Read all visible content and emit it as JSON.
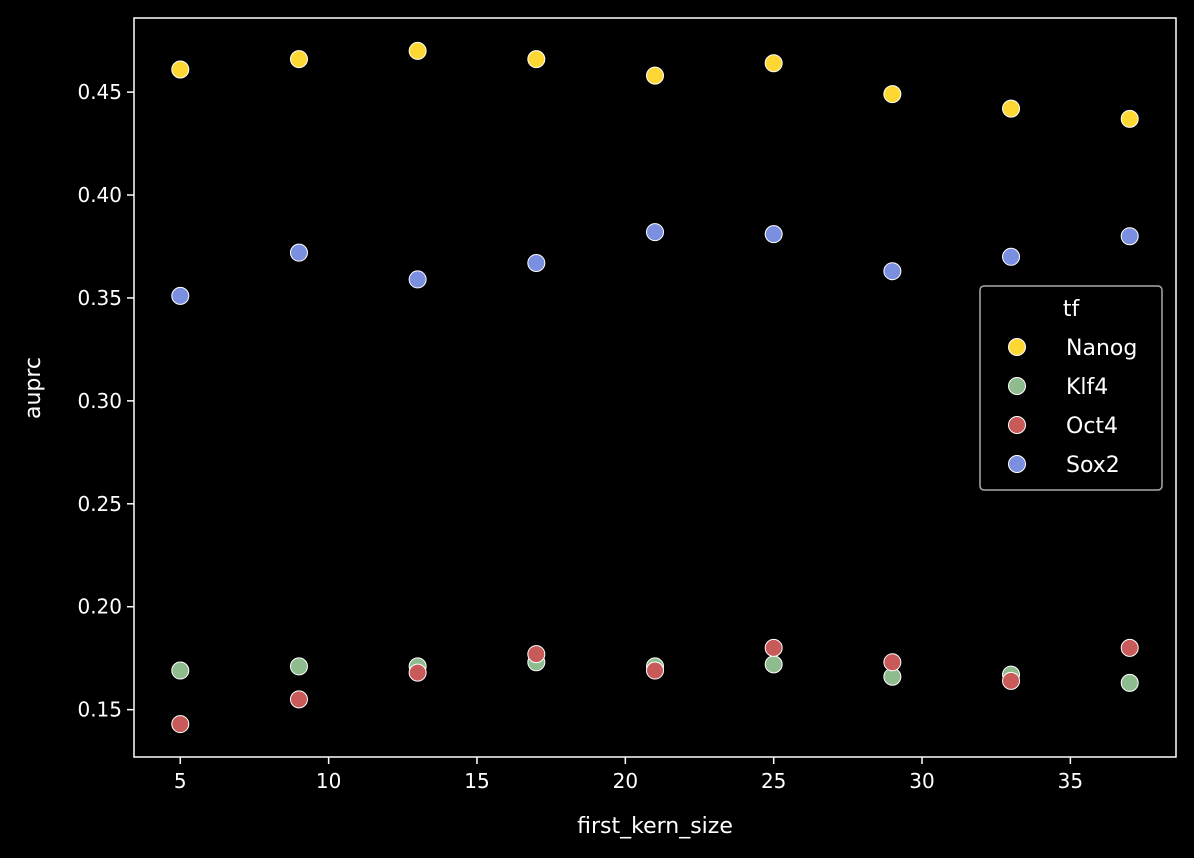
{
  "chart_data": {
    "type": "scatter",
    "xlabel": "first_kern_size",
    "ylabel": "auprc",
    "xlim": [
      3.44,
      38.56
    ],
    "ylim": [
      0.127,
      0.486
    ],
    "x_ticks": [
      5,
      10,
      15,
      20,
      25,
      30,
      35
    ],
    "y_ticks": [
      0.15,
      0.2,
      0.25,
      0.3,
      0.35,
      0.4,
      0.45
    ],
    "x_tick_labels": [
      "5",
      "10",
      "15",
      "20",
      "25",
      "30",
      "35"
    ],
    "y_tick_labels": [
      "0.15",
      "0.20",
      "0.25",
      "0.30",
      "0.35",
      "0.40",
      "0.45"
    ],
    "grid": false,
    "legend": {
      "title": "tf",
      "position": "center-right"
    },
    "x": [
      5,
      9,
      13,
      17,
      21,
      25,
      29,
      33,
      37
    ],
    "series": [
      {
        "name": "Nanog",
        "color": "#fdd835",
        "values": [
          0.461,
          0.466,
          0.47,
          0.466,
          0.458,
          0.464,
          0.449,
          0.442,
          0.437
        ]
      },
      {
        "name": "Klf4",
        "color": "#8fbc8f",
        "values": [
          0.169,
          0.171,
          0.171,
          0.173,
          0.171,
          0.172,
          0.166,
          0.167,
          0.163
        ]
      },
      {
        "name": "Oct4",
        "color": "#c85a5a",
        "values": [
          0.143,
          0.155,
          0.168,
          0.177,
          0.169,
          0.18,
          0.173,
          0.164,
          0.18
        ]
      },
      {
        "name": "Sox2",
        "color": "#7b8fe0",
        "values": [
          0.351,
          0.372,
          0.359,
          0.367,
          0.382,
          0.381,
          0.363,
          0.37,
          0.38
        ]
      }
    ]
  }
}
